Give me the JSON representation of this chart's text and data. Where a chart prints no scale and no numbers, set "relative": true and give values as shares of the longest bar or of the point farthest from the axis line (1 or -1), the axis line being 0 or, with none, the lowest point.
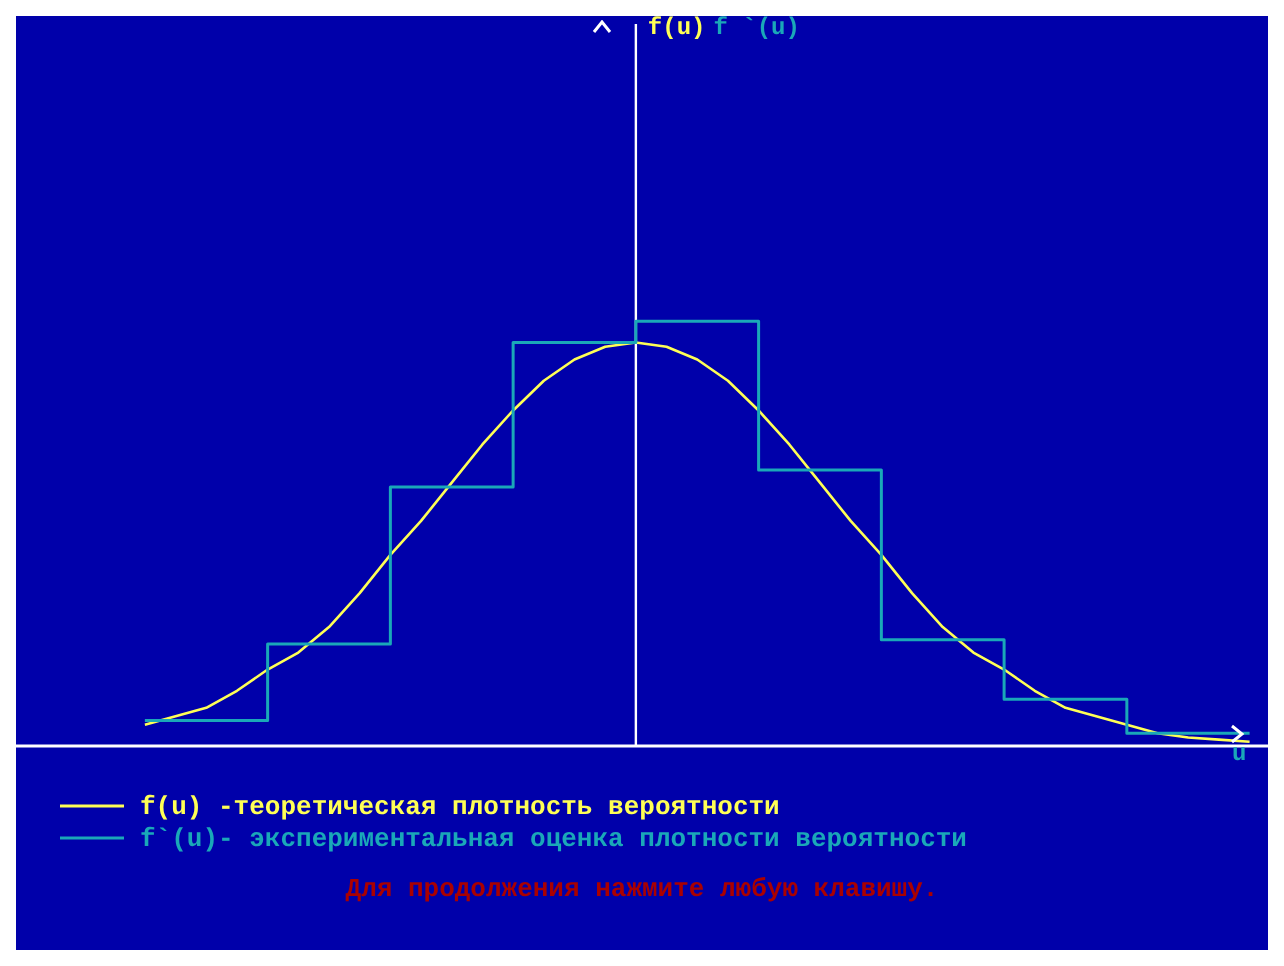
{
  "chart_data": {
    "type": "line",
    "relative": true,
    "xlabel": "u",
    "legend": "bottom left",
    "marker": "none",
    "categories": [
      null,
      null,
      null,
      null,
      null,
      null,
      null,
      null,
      null,
      null,
      null,
      null,
      null,
      null,
      null,
      null,
      null,
      null,
      null,
      null,
      null,
      null,
      null,
      null,
      null,
      null,
      null,
      null,
      null,
      null,
      null,
      null,
      null,
      null,
      null,
      null,
      null
    ],
    "series": [
      {
        "name": "f(u) -теоретическая плотность вероятности",
        "color": "#ffff55",
        "values": [
          0.05,
          0.07,
          0.09,
          0.13,
          0.18,
          0.22,
          0.28,
          0.36,
          0.45,
          0.53,
          0.62,
          0.71,
          0.79,
          0.86,
          0.91,
          0.94,
          0.95,
          0.94,
          0.91,
          0.86,
          0.79,
          0.71,
          0.62,
          0.53,
          0.45,
          0.36,
          0.28,
          0.22,
          0.18,
          0.13,
          0.09,
          0.07,
          0.05,
          0.03,
          0.02,
          0.015,
          0.01
        ]
      },
      {
        "name": "f`(u)- экспериментальная оценка плотности вероятности",
        "type": "step",
        "color": "#1aa8b8",
        "values": [
          0.06,
          0.06,
          0.06,
          0.06,
          0.24,
          0.24,
          0.24,
          0.24,
          0.61,
          0.61,
          0.61,
          0.61,
          0.95,
          0.95,
          0.95,
          0.95,
          1,
          1,
          1,
          1,
          0.65,
          0.65,
          0.65,
          0.65,
          0.25,
          0.25,
          0.25,
          0.25,
          0.11,
          0.11,
          0.11,
          0.11,
          0.03,
          0.03,
          0.03,
          0.03,
          0.03
        ]
      }
    ],
    "annotations": [
      "f(u)",
      "f `(u)",
      "Для продолжения нажмите любую клавишу."
    ]
  }
}
